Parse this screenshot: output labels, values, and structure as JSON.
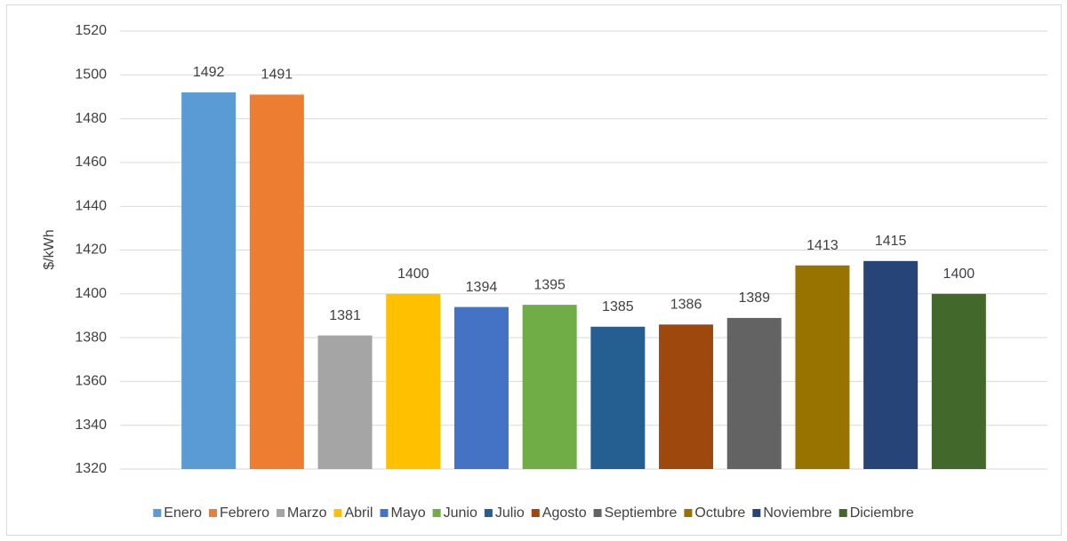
{
  "chart_data": {
    "type": "bar",
    "y_label": "$/kWh",
    "series": [
      {
        "name": "Enero",
        "color": "#5b9bd5",
        "values": [
          1492
        ]
      },
      {
        "name": "Febrero",
        "color": "#ed7d31",
        "values": [
          1491
        ]
      },
      {
        "name": "Marzo",
        "color": "#a5a5a5",
        "values": [
          1381
        ]
      },
      {
        "name": "Abril",
        "color": "#ffc000",
        "values": [
          1400
        ]
      },
      {
        "name": "Mayo",
        "color": "#4472c4",
        "values": [
          1394
        ]
      },
      {
        "name": "Junio",
        "color": "#70ad47",
        "values": [
          1395
        ]
      },
      {
        "name": "Julio",
        "color": "#255e91",
        "values": [
          1385
        ]
      },
      {
        "name": "Agosto",
        "color": "#9e480e",
        "values": [
          1386
        ]
      },
      {
        "name": "Septiembre",
        "color": "#636363",
        "values": [
          1389
        ]
      },
      {
        "name": "Octubre",
        "color": "#997300",
        "values": [
          1413
        ]
      },
      {
        "name": "Noviembre",
        "color": "#264478",
        "values": [
          1415
        ]
      },
      {
        "name": "Diciembre",
        "color": "#43682b",
        "values": [
          1400
        ]
      }
    ],
    "ylim": [
      1320,
      1520
    ],
    "yticks": [
      1320,
      1340,
      1360,
      1380,
      1400,
      1420,
      1440,
      1460,
      1480,
      1500,
      1520
    ],
    "grid": true,
    "legend": "bottom"
  }
}
